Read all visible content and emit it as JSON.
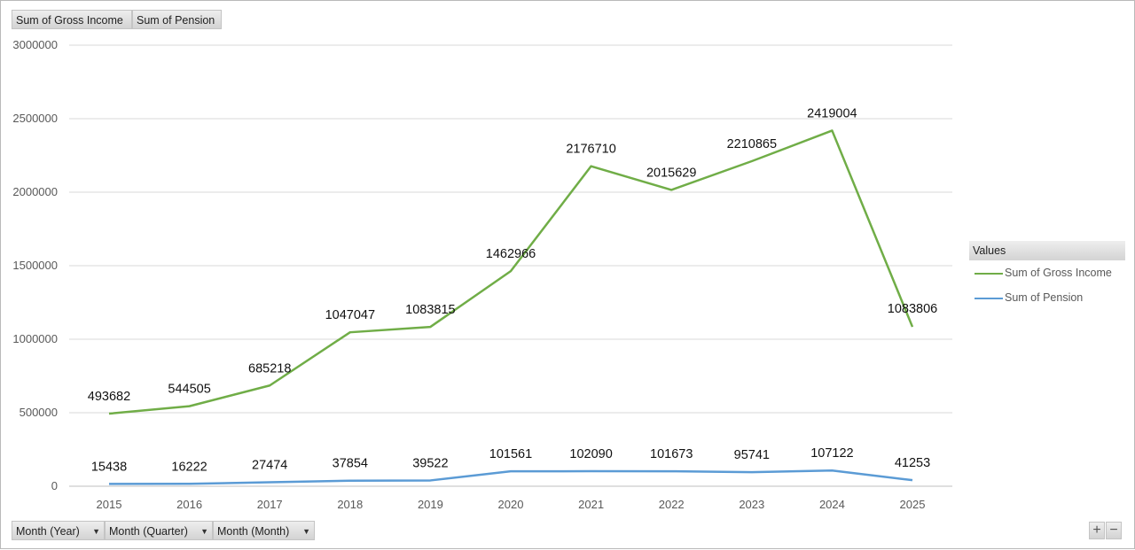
{
  "value_fields": [
    "Sum of Gross Income",
    "Sum of Pension"
  ],
  "axis_fields": [
    {
      "label": "Month (Year)",
      "dropdown_icon": "dropdown-arrow-icon"
    },
    {
      "label": "Month (Quarter)",
      "dropdown_icon": "dropdown-arrow-icon"
    },
    {
      "label": "Month (Month)",
      "dropdown_icon": "dropdown-arrow-icon"
    }
  ],
  "legend": {
    "title": "Values",
    "items": [
      {
        "label": "Sum of Gross Income",
        "color": "#70ad47"
      },
      {
        "label": "Sum of Pension",
        "color": "#5b9bd5"
      }
    ]
  },
  "zoom_buttons": {
    "plus": "+",
    "minus": "−"
  },
  "chart_data": {
    "type": "line",
    "categories": [
      "2015",
      "2016",
      "2017",
      "2018",
      "2019",
      "2020",
      "2021",
      "2022",
      "2023",
      "2024",
      "2025"
    ],
    "series": [
      {
        "name": "Sum of Gross Income",
        "color": "#70ad47",
        "values": [
          493682,
          544505,
          685218,
          1047047,
          1083815,
          1462966,
          2176710,
          2015629,
          2210865,
          2419004,
          1083806
        ]
      },
      {
        "name": "Sum of Pension",
        "color": "#5b9bd5",
        "values": [
          15438,
          16222,
          27474,
          37854,
          39522,
          101561,
          102090,
          101673,
          95741,
          107122,
          41253
        ]
      }
    ],
    "ylim": [
      0,
      3000000
    ],
    "yticks": [
      0,
      500000,
      1000000,
      1500000,
      2000000,
      2500000,
      3000000
    ],
    "ytick_labels": [
      "0",
      "500000",
      "1000000",
      "1500000",
      "2000000",
      "2500000",
      "3000000"
    ],
    "grid": true,
    "legend_position": "right",
    "data_labels": true
  }
}
